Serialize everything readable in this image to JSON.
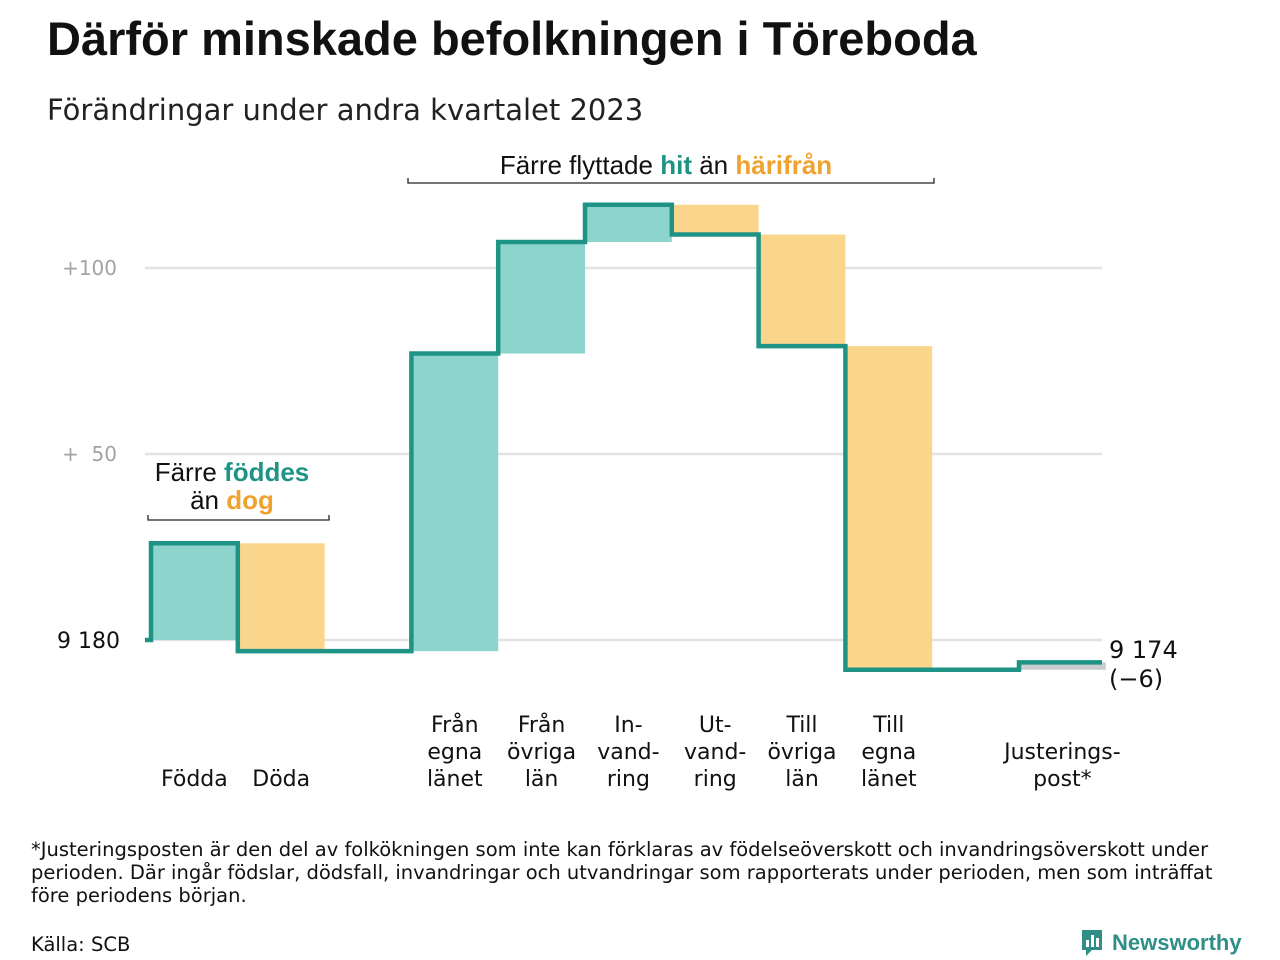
{
  "title": "Därför minskade befolkningen i Töreboda",
  "subtitle": "Förändringar under andra kvartalet 2023",
  "footnote": "*Justeringsposten är den del av folkökningen som inte kan förklaras av födelseöverskott och invandringsöverskott under perioden. Där ingår födslar, dödsfall, invandringar och utvandringar som rapporterats under perioden, men som inträffat före periodens början.",
  "source": "Källa: SCB",
  "brand": {
    "name": "Newsworthy",
    "icon": "bar-chart-logo-icon"
  },
  "colors": {
    "increase": "#8dd5cc",
    "decrease": "#fad58c",
    "adjustment": "#c9ccce",
    "line": "#1f9486",
    "grid": "#e3e3e3",
    "highlight_teal": "#1f9486",
    "highlight_orange": "#f0a22e"
  },
  "chart_data": {
    "type": "waterfall",
    "start_label": "9 180",
    "end_label": "9 174",
    "end_change_label": "(−6)",
    "y_ticks": [
      "+100",
      "+  50"
    ],
    "y_tick_values": [
      100,
      50
    ],
    "y_range": [
      -12,
      122
    ],
    "grid": true,
    "steps": [
      {
        "label": [
          "Födda"
        ],
        "value": 26,
        "kind": "increase"
      },
      {
        "label": [
          "Döda"
        ],
        "value": -29,
        "kind": "decrease"
      },
      {
        "label": [
          "Från",
          "egna",
          "länet"
        ],
        "value": 80,
        "kind": "increase"
      },
      {
        "label": [
          "Från",
          "övriga",
          "län"
        ],
        "value": 30,
        "kind": "increase"
      },
      {
        "label": [
          "In-",
          "vand-",
          "ring"
        ],
        "value": 10,
        "kind": "increase"
      },
      {
        "label": [
          "Ut-",
          "vand-",
          "ring"
        ],
        "value": -8,
        "kind": "decrease"
      },
      {
        "label": [
          "Till",
          "övriga",
          "län"
        ],
        "value": -30,
        "kind": "decrease"
      },
      {
        "label": [
          "Till",
          "egna",
          "länet"
        ],
        "value": -87,
        "kind": "decrease"
      },
      {
        "label": [
          "Justerings-",
          "post*"
        ],
        "value": 2,
        "kind": "adjustment"
      }
    ],
    "annotations": [
      {
        "id": "births",
        "lines": [
          [
            {
              "text": "Färre ",
              "style": "plain"
            },
            {
              "text": "föddes",
              "style": "teal"
            }
          ],
          [
            {
              "text": "än ",
              "style": "plain"
            },
            {
              "text": "dog",
              "style": "orange"
            }
          ]
        ]
      },
      {
        "id": "migration",
        "lines": [
          [
            {
              "text": "Färre flyttade ",
              "style": "plain"
            },
            {
              "text": "hit",
              "style": "teal"
            },
            {
              "text": " än ",
              "style": "plain"
            },
            {
              "text": "härifrån",
              "style": "orange"
            }
          ]
        ]
      }
    ]
  }
}
